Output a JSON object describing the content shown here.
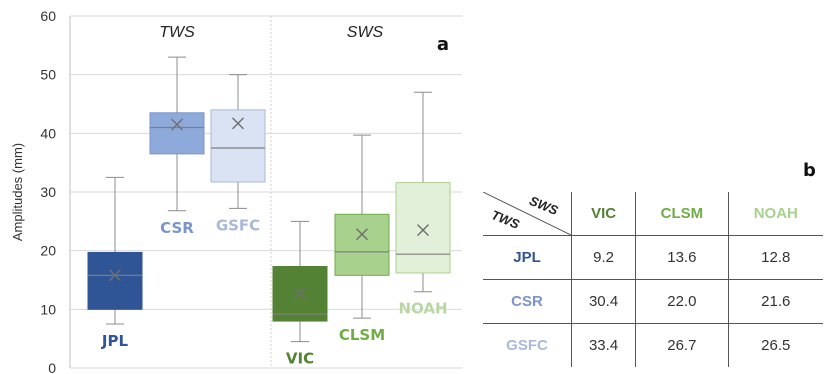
{
  "chart_data": [
    {
      "type": "box",
      "panel_label": "a",
      "ylabel": "Amplitudes (mm)",
      "ylim": [
        0,
        60
      ],
      "yticks": [
        0,
        10,
        20,
        30,
        40,
        50,
        60
      ],
      "grid": "horizontal",
      "groups": [
        {
          "label": "TWS",
          "series": [
            "JPL",
            "CSR",
            "GSFC"
          ]
        },
        {
          "label": "SWS",
          "series": [
            "VIC",
            "CLSM",
            "NOAH"
          ]
        }
      ],
      "series": [
        {
          "name": "JPL",
          "whisker_low": 7.5,
          "q1": 10.0,
          "median": 15.8,
          "q3": 19.7,
          "whisker_high": 32.5,
          "mean": 15.8,
          "color": "#2f5597",
          "fill": "#2f5597",
          "label_color": "#2f5597",
          "label_pos": "below"
        },
        {
          "name": "CSR",
          "whisker_low": 26.8,
          "q1": 36.5,
          "median": 41.0,
          "q3": 43.5,
          "whisker_high": 53.0,
          "mean": 41.5,
          "color": "#7a95cc",
          "fill": "#8eaadb",
          "label_color": "#7a95cc",
          "label_pos": "below"
        },
        {
          "name": "GSFC",
          "whisker_low": 27.2,
          "q1": 31.7,
          "median": 37.5,
          "q3": 44.0,
          "whisker_high": 50.0,
          "mean": 41.7,
          "color": "#a9b9d9",
          "fill": "#dae3f3",
          "label_color": "#a9b9d9",
          "label_pos": "below"
        },
        {
          "name": "VIC",
          "whisker_low": 4.5,
          "q1": 8.0,
          "median": 9.2,
          "q3": 17.3,
          "whisker_high": 25.0,
          "mean": 12.8,
          "color": "#548235",
          "fill": "#548235",
          "label_color": "#548235",
          "label_pos": "below"
        },
        {
          "name": "CLSM",
          "whisker_low": 8.5,
          "q1": 15.8,
          "median": 19.8,
          "q3": 26.2,
          "whisker_high": 39.7,
          "mean": 22.8,
          "color": "#70ad47",
          "fill": "#a9d18e",
          "label_color": "#70ad47",
          "label_pos": "below"
        },
        {
          "name": "NOAH",
          "whisker_low": 13.0,
          "q1": 16.2,
          "median": 19.4,
          "q3": 31.6,
          "whisker_high": 47.0,
          "mean": 23.5,
          "color": "#a9d18e",
          "fill": "#e2f0d9",
          "label_color": "#b9d7a4",
          "label_pos": "below"
        }
      ]
    },
    {
      "type": "table",
      "panel_label": "b",
      "corner_row_label": "TWS",
      "corner_col_label": "SWS",
      "columns": [
        "VIC",
        "CLSM",
        "NOAH"
      ],
      "column_colors": [
        "#548235",
        "#70ad47",
        "#a9d18e"
      ],
      "rows": [
        {
          "name": "JPL",
          "color": "#2f5597",
          "values": [
            "9.2",
            "13.6",
            "12.8"
          ]
        },
        {
          "name": "CSR",
          "color": "#7a95cc",
          "values": [
            "30.4",
            "22.0",
            "21.6"
          ]
        },
        {
          "name": "GSFC",
          "color": "#a9b9d9",
          "values": [
            "33.4",
            "26.7",
            "26.5"
          ]
        }
      ]
    }
  ]
}
